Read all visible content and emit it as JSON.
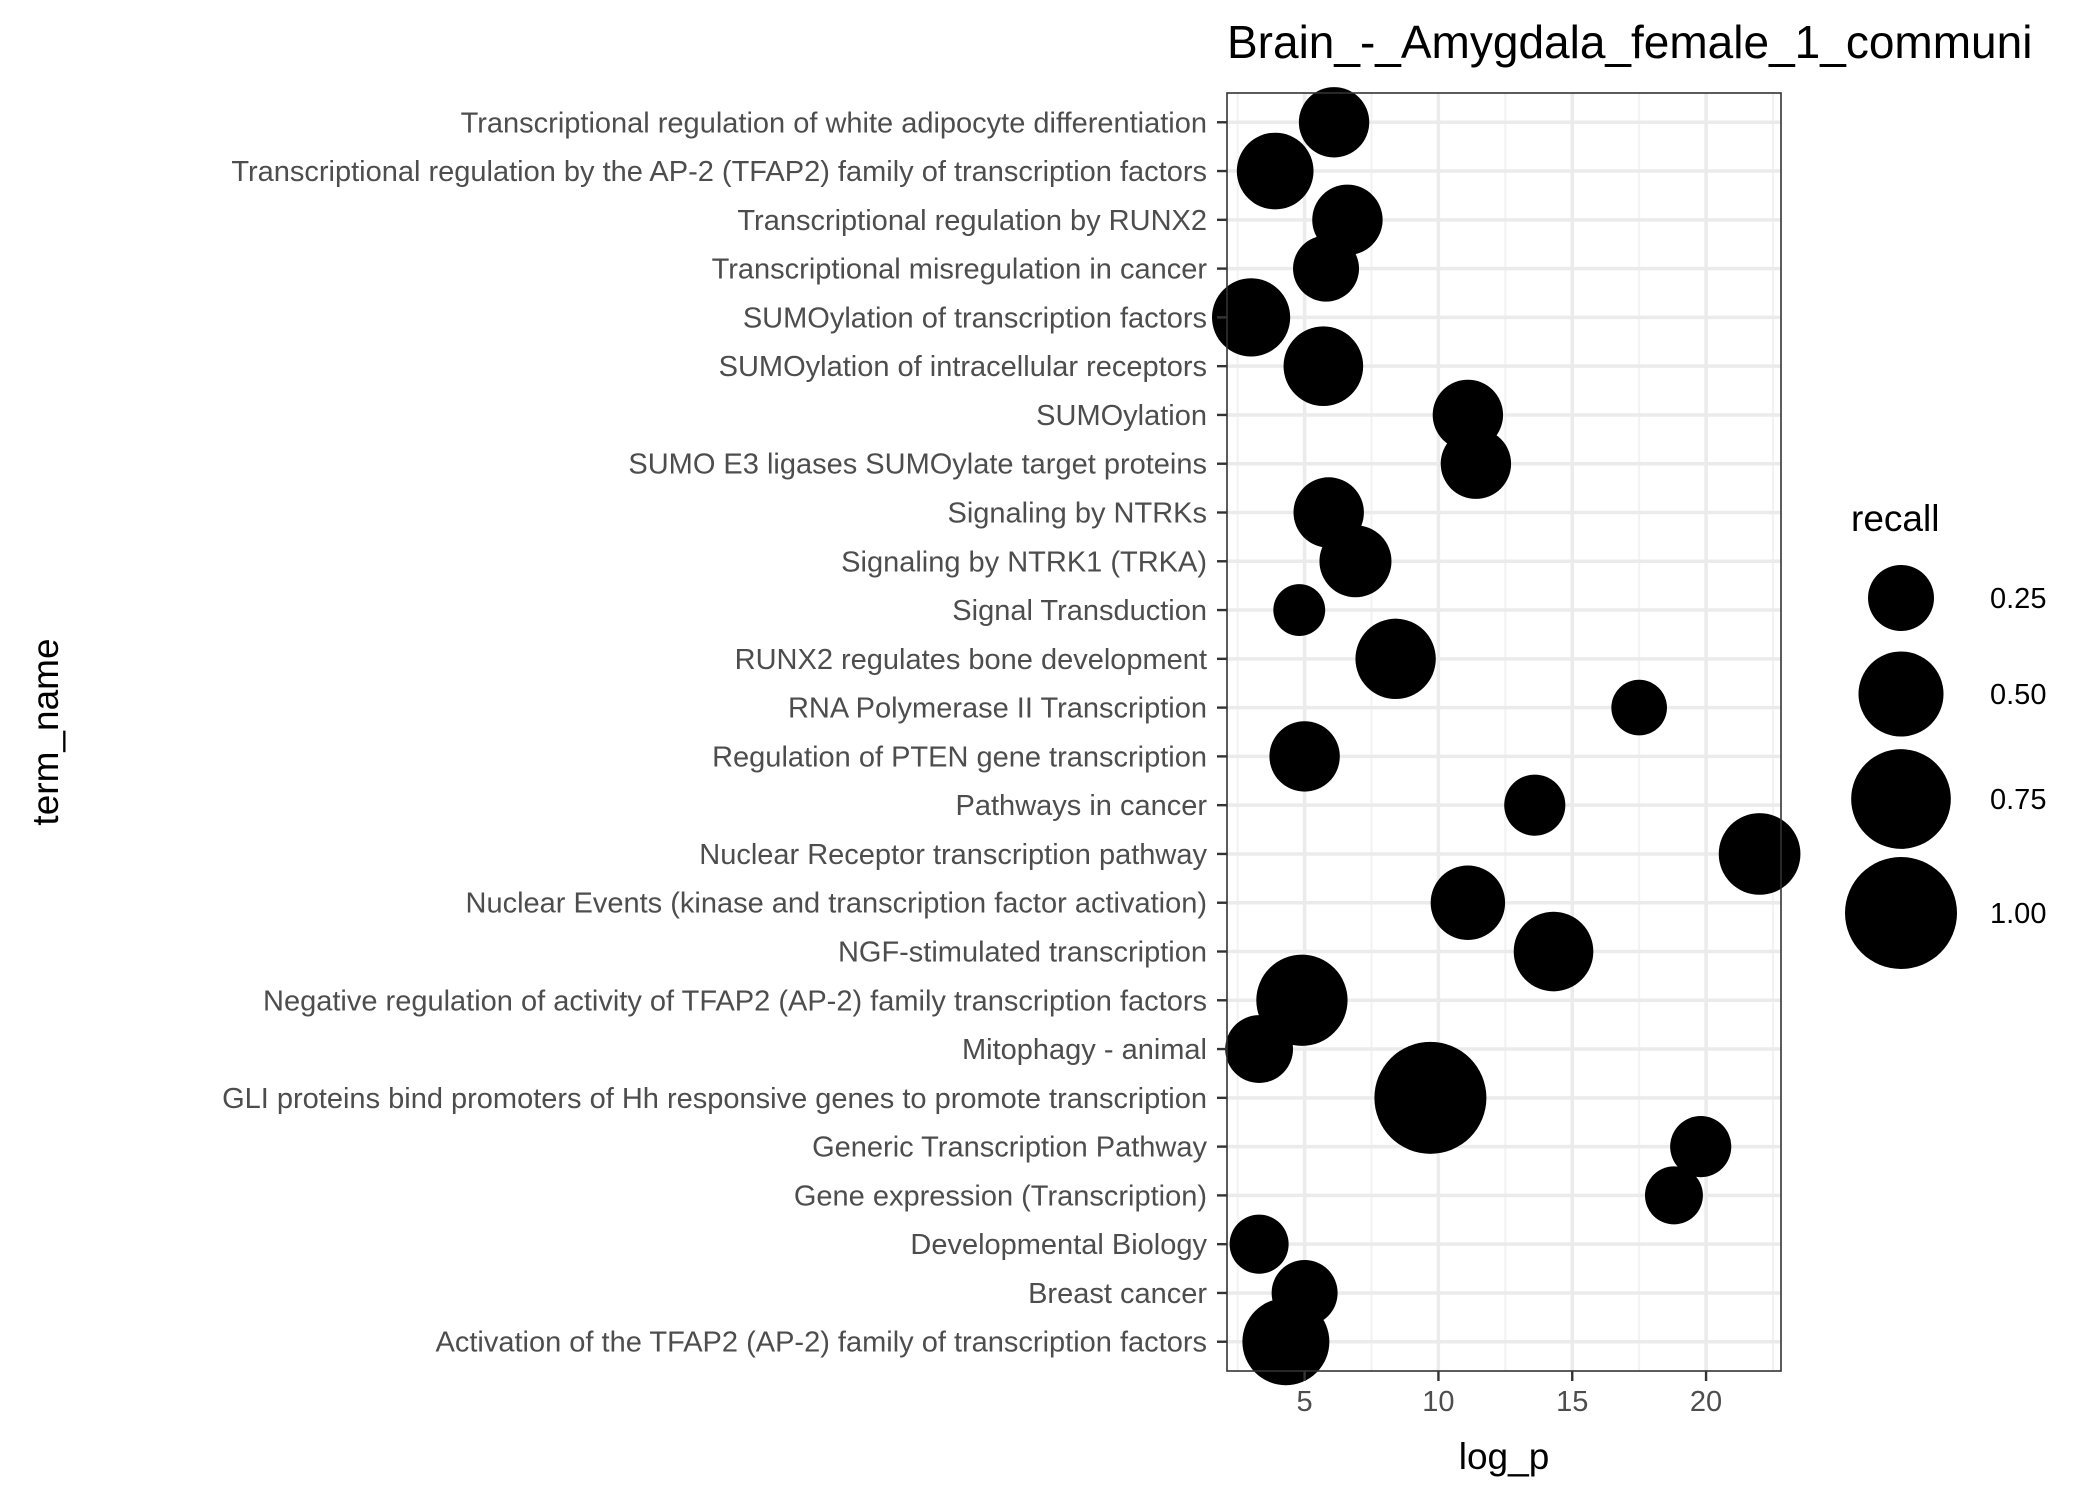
{
  "chart_data": {
    "type": "scatter",
    "title": "Brain_-_Amygdala_female_1_communi",
    "xlabel": "log_p",
    "ylabel": "term_name",
    "xlim": [
      2.1,
      22.8
    ],
    "xticks": [
      5,
      10,
      15,
      20
    ],
    "xtick_labels": [
      "5",
      "10",
      "15",
      "20"
    ],
    "grid": true,
    "size_variable": "recall",
    "marker_color": "#000000",
    "legend": {
      "title": "recall",
      "placement": "right",
      "entries": [
        {
          "label": "0.25",
          "value": 0.25
        },
        {
          "label": "0.50",
          "value": 0.5
        },
        {
          "label": "0.75",
          "value": 0.75
        },
        {
          "label": "1.00",
          "value": 1.0
        }
      ]
    },
    "points": [
      {
        "term": "Transcriptional regulation of white adipocyte differentiation",
        "log_p": 6.1,
        "recall": 0.3
      },
      {
        "term": "Transcriptional regulation by the AP-2 (TFAP2) family of transcription factors",
        "log_p": 3.9,
        "recall": 0.38
      },
      {
        "term": "Transcriptional regulation by RUNX2",
        "log_p": 6.6,
        "recall": 0.3
      },
      {
        "term": "Transcriptional misregulation in cancer",
        "log_p": 5.8,
        "recall": 0.25
      },
      {
        "term": "SUMOylation of transcription factors",
        "log_p": 3.0,
        "recall": 0.4
      },
      {
        "term": "SUMOylation of intracellular receptors",
        "log_p": 5.7,
        "recall": 0.42
      },
      {
        "term": "SUMOylation",
        "log_p": 11.1,
        "recall": 0.3
      },
      {
        "term": "SUMO E3 ligases SUMOylate target proteins",
        "log_p": 11.4,
        "recall": 0.3
      },
      {
        "term": "Signaling by NTRKs",
        "log_p": 5.9,
        "recall": 0.3
      },
      {
        "term": "Signaling by NTRK1 (TRKA)",
        "log_p": 6.9,
        "recall": 0.32
      },
      {
        "term": "Signal Transduction",
        "log_p": 4.8,
        "recall": 0.12
      },
      {
        "term": "RUNX2 regulates bone development",
        "log_p": 8.4,
        "recall": 0.43
      },
      {
        "term": "RNA Polymerase II Transcription",
        "log_p": 17.5,
        "recall": 0.15
      },
      {
        "term": "Regulation of PTEN gene transcription",
        "log_p": 5.0,
        "recall": 0.3
      },
      {
        "term": "Pathways in cancer",
        "log_p": 13.6,
        "recall": 0.2
      },
      {
        "term": "Nuclear Receptor transcription pathway",
        "log_p": 22.0,
        "recall": 0.45
      },
      {
        "term": "Nuclear Events (kinase and transcription factor activation)",
        "log_p": 11.1,
        "recall": 0.35
      },
      {
        "term": "NGF-stimulated transcription",
        "log_p": 14.3,
        "recall": 0.42
      },
      {
        "term": "Negative regulation of activity of TFAP2 (AP-2) family transcription factors",
        "log_p": 4.9,
        "recall": 0.6
      },
      {
        "term": "Mitophagy - animal",
        "log_p": 3.3,
        "recall": 0.27
      },
      {
        "term": "GLI proteins bind promoters of Hh responsive genes to promote transcription",
        "log_p": 9.7,
        "recall": 1.0
      },
      {
        "term": "Generic Transcription Pathway",
        "log_p": 19.8,
        "recall": 0.2
      },
      {
        "term": "Gene expression (Transcription)",
        "log_p": 18.8,
        "recall": 0.17
      },
      {
        "term": "Developmental Biology",
        "log_p": 3.3,
        "recall": 0.18
      },
      {
        "term": "Breast cancer",
        "log_p": 5.0,
        "recall": 0.25
      },
      {
        "term": "Activation of the TFAP2 (AP-2) family of transcription factors",
        "log_p": 4.3,
        "recall": 0.53
      }
    ]
  }
}
